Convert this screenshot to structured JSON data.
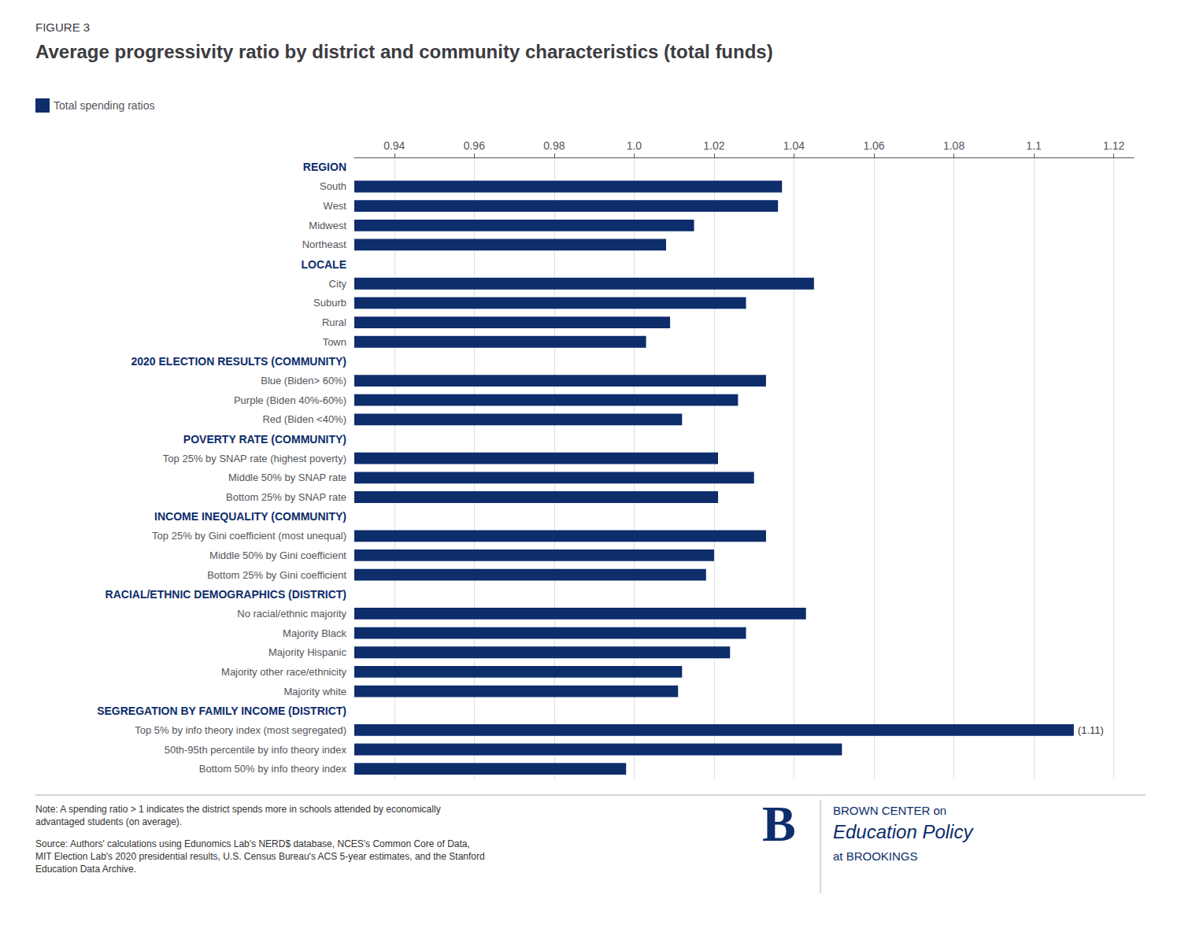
{
  "chart_data": {
    "type": "bar",
    "orientation": "horizontal",
    "figure_label": "FIGURE 3",
    "title": "Average progressivity ratio by district and community characteristics (total funds)",
    "categories": [
      "REGION",
      "South",
      "West",
      "Midwest",
      "Northeast",
      "LOCALE",
      "City",
      "Suburb",
      "Rural",
      "Town",
      "2020 ELECTION RESULTS (COMMUNITY)",
      "Blue (Biden> 60%)",
      "Purple (Biden 40%-60%)",
      "Red (Biden <40%)",
      "POVERTY RATE (COMMUNITY)",
      "Top 25% by SNAP rate (highest poverty)",
      "Middle 50% by SNAP rate",
      "Bottom 25% by SNAP rate",
      "INCOME INEQUALITY (COMMUNITY)",
      "Top 25% by Gini coefficient (most unequal)",
      "Middle 50% by Gini coefficient",
      "Bottom 25% by Gini coefficient",
      "RACIAL/ETHNIC DEMOGRAPHICS (DISTRICT)",
      "No racial/ethnic majority",
      "Majority Black",
      "Majority Hispanic",
      "Majority other race/ethnicity",
      "Majority white",
      "SEGREGATION BY FAMILY INCOME (DISTRICT)",
      "Top 5% by info theory index (most segregated)",
      "50th-95th percentile by info theory index",
      "Bottom 50% by info theory index"
    ],
    "series": [
      {
        "name": "Total spending ratios",
        "color": "#0d2d6b",
        "values": [
          null,
          1.037,
          1.036,
          1.015,
          1.008,
          null,
          1.045,
          1.028,
          1.009,
          1.003,
          null,
          1.033,
          1.026,
          1.012,
          null,
          1.021,
          1.03,
          1.021,
          null,
          1.033,
          1.02,
          1.018,
          null,
          1.043,
          1.028,
          1.024,
          1.012,
          1.011,
          null,
          1.11,
          1.052,
          0.998
        ]
      }
    ],
    "xlim": [
      0.93,
      1.125
    ],
    "xticks": [
      0.94,
      0.96,
      0.98,
      {
        "value": 1.0,
        "label": "1.0"
      },
      1.02,
      1.04,
      1.06,
      1.08,
      1.1,
      1.12
    ],
    "grid": true,
    "legend": "top-left",
    "annotation": {
      "text": "(1.11)",
      "category": "Top 5% by info theory index (most segregated)"
    },
    "note": "Note: A spending ratio > 1 indicates the district spends more in schools attended by economically\nadvantaged students (on average).",
    "source": "Source: Authors' calculations using Edunomics Lab's NERD$ database, NCES's Common Core of Data,\nMIT Election Lab's 2020 presidential results, U.S. Census Bureau's ACS 5-year estimates, and the Stanford\nEducation Data Archive.",
    "branding": [
      "B",
      "BROWN CENTER on",
      "Education Policy",
      "at BROOKINGS"
    ]
  }
}
